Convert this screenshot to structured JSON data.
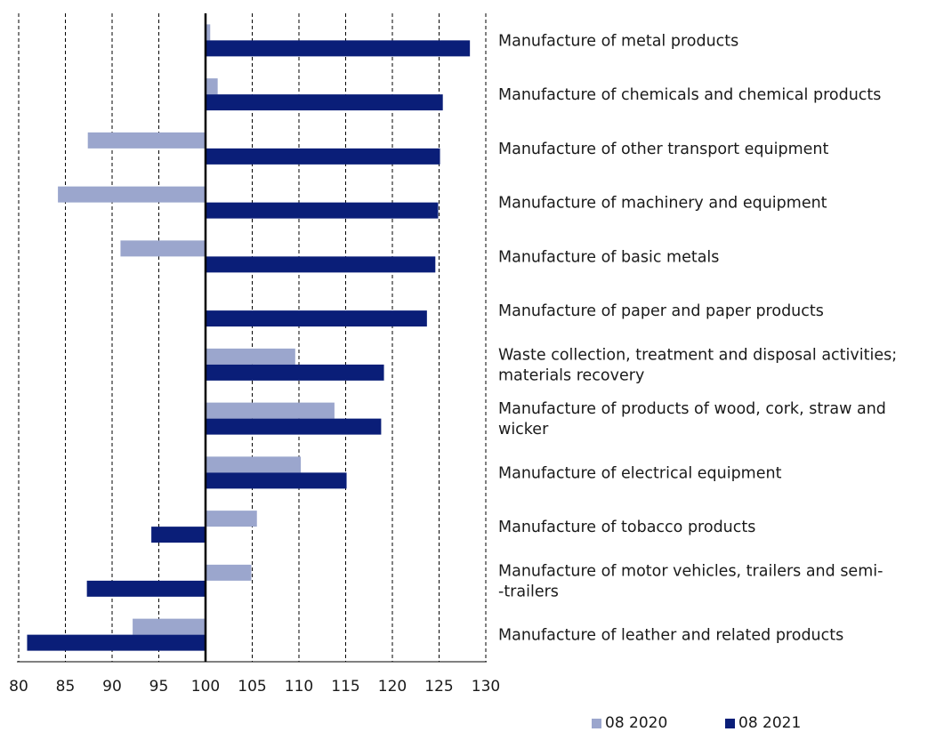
{
  "chart_data": {
    "type": "bar",
    "orientation": "horizontal",
    "title": "",
    "xlabel": "",
    "ylabel": "",
    "xlim": [
      80,
      130
    ],
    "baseline": 100,
    "grid": "vertical dashed",
    "legend_position": "bottom-right",
    "ticks": [
      "80",
      "85",
      "90",
      "95",
      "100",
      "105",
      "110",
      "115",
      "120",
      "125",
      "130"
    ],
    "categories": [
      [
        "Manufacture of metal products"
      ],
      [
        "Manufacture of chemicals and chemical products"
      ],
      [
        "Manufacture of other transport equipment"
      ],
      [
        "Manufacture of machinery and equipment"
      ],
      [
        "Manufacture of basic metals"
      ],
      [
        "Manufacture of paper and paper products"
      ],
      [
        "Waste collection, treatment and disposal activities;",
        "materials recovery"
      ],
      [
        "Manufacture of products of wood, cork, straw and",
        "wicker"
      ],
      [
        "Manufacture of electrical equipment"
      ],
      [
        "Manufacture of tobacco products"
      ],
      [
        "Manufacture of motor vehicles, trailers and semi-",
        "-trailers"
      ],
      [
        "Manufacture of leather and related products"
      ]
    ],
    "series": [
      {
        "name": "08 2020",
        "color": "#9ba6cd",
        "values": [
          100.5,
          101.3,
          87.4,
          84.2,
          90.9,
          100.0,
          109.6,
          113.8,
          110.2,
          105.5,
          104.9,
          92.2
        ]
      },
      {
        "name": "08 2021",
        "color": "#0a1e78",
        "values": [
          128.3,
          125.4,
          125.1,
          124.9,
          124.6,
          123.7,
          119.1,
          118.8,
          115.1,
          94.2,
          87.3,
          80.9
        ]
      }
    ]
  }
}
